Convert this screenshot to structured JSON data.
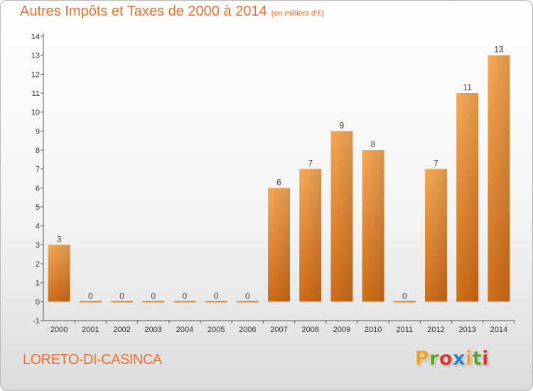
{
  "title": "Autres Impôts et Taxes de 2000 à 2014",
  "subtitle": "(en milliers d'€)",
  "commune": "LORETO-DI-CASINCA",
  "logo": {
    "letters": [
      "P",
      "r",
      "o",
      "x",
      "i",
      "t",
      "i"
    ],
    "colors": [
      "#f0a020",
      "#5aa02c",
      "#e0342a",
      "#2b7fc8",
      "#f0a020",
      "#5aa02c",
      "#e0342a"
    ]
  },
  "colors": {
    "bar": "#ef8a2e",
    "text": "#ee6e2b",
    "axis": "#555555"
  },
  "chart_data": {
    "type": "bar",
    "categories": [
      "2000",
      "2001",
      "2002",
      "2003",
      "2004",
      "2005",
      "2006",
      "2007",
      "2008",
      "2009",
      "2010",
      "2011",
      "2012",
      "2013",
      "2014"
    ],
    "values": [
      3,
      0,
      0,
      0,
      0,
      0,
      0,
      6,
      7,
      9,
      8,
      0,
      7,
      11,
      13
    ],
    "data_labels": [
      "3",
      "0",
      "0",
      "0",
      "0",
      "0",
      "0",
      "6",
      "7",
      "9",
      "8",
      "0",
      "7",
      "11",
      "13"
    ],
    "y_ticks": [
      "-1",
      "0",
      "1",
      "2",
      "3",
      "4",
      "5",
      "6",
      "7",
      "8",
      "9",
      "10",
      "11",
      "12",
      "13",
      "14"
    ],
    "ylim": [
      -1,
      14
    ],
    "title": "Autres Impôts et Taxes de 2000 à 2014",
    "subtitle": "(en milliers d'€)",
    "grid": false
  }
}
